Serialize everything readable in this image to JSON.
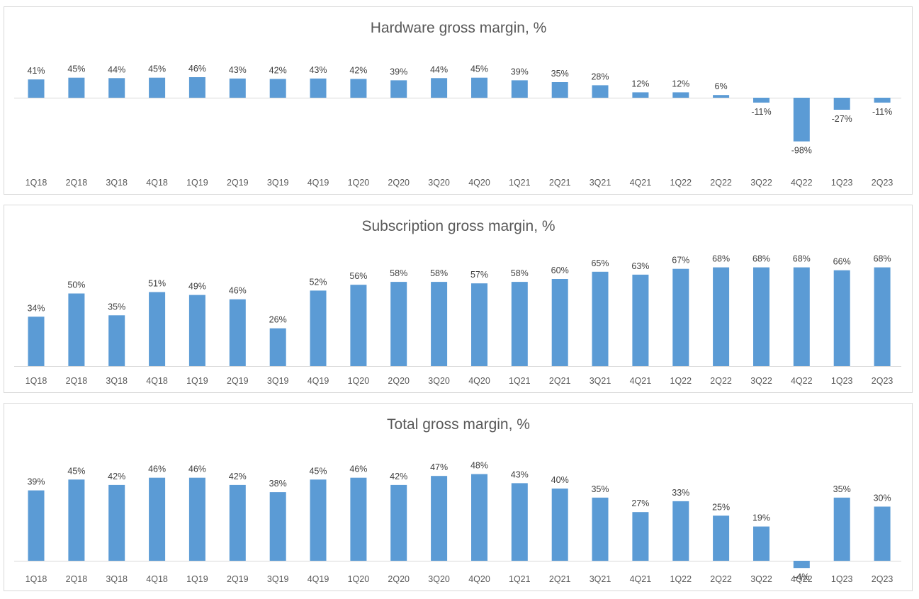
{
  "colors": {
    "bar": "#5b9bd5",
    "axis": "#d9d9d9",
    "title": "#595959",
    "label": "#404040"
  },
  "chart_data": [
    {
      "type": "bar",
      "title": "Hardware gross margin, %",
      "categories": [
        "1Q18",
        "2Q18",
        "3Q18",
        "4Q18",
        "1Q19",
        "2Q19",
        "3Q19",
        "4Q19",
        "1Q20",
        "2Q20",
        "3Q20",
        "4Q20",
        "1Q21",
        "2Q21",
        "3Q21",
        "4Q21",
        "1Q22",
        "2Q22",
        "3Q22",
        "4Q22",
        "1Q23",
        "2Q23"
      ],
      "values": [
        41,
        45,
        44,
        45,
        46,
        43,
        42,
        43,
        42,
        39,
        44,
        45,
        39,
        35,
        28,
        12,
        12,
        6,
        -11,
        -98,
        -27,
        -11
      ],
      "value_labels": [
        "41%",
        "45%",
        "44%",
        "45%",
        "46%",
        "43%",
        "42%",
        "43%",
        "42%",
        "39%",
        "44%",
        "45%",
        "39%",
        "35%",
        "28%",
        "12%",
        "12%",
        "6%",
        "-11%",
        "-98%",
        "-27%",
        "-11%"
      ],
      "ylim": [
        -100,
        100
      ],
      "grid": false,
      "xlabel": "",
      "ylabel": ""
    },
    {
      "type": "bar",
      "title": "Subscription gross margin, %",
      "categories": [
        "1Q18",
        "2Q18",
        "3Q18",
        "4Q18",
        "1Q19",
        "2Q19",
        "3Q19",
        "4Q19",
        "1Q20",
        "2Q20",
        "3Q20",
        "4Q20",
        "1Q21",
        "2Q21",
        "3Q21",
        "4Q21",
        "1Q22",
        "2Q22",
        "3Q22",
        "4Q22",
        "1Q23",
        "2Q23"
      ],
      "values": [
        34,
        50,
        35,
        51,
        49,
        46,
        26,
        52,
        56,
        58,
        58,
        57,
        58,
        60,
        65,
        63,
        67,
        68,
        68,
        68,
        66,
        68
      ],
      "value_labels": [
        "34%",
        "50%",
        "35%",
        "51%",
        "49%",
        "46%",
        "26%",
        "52%",
        "56%",
        "58%",
        "58%",
        "57%",
        "58%",
        "60%",
        "65%",
        "63%",
        "67%",
        "68%",
        "68%",
        "68%",
        "66%",
        "68%"
      ],
      "ylim": [
        0,
        80
      ],
      "grid": false,
      "xlabel": "",
      "ylabel": ""
    },
    {
      "type": "bar",
      "title": "Total gross margin, %",
      "categories": [
        "1Q18",
        "2Q18",
        "3Q18",
        "4Q18",
        "1Q19",
        "2Q19",
        "3Q19",
        "4Q19",
        "1Q20",
        "2Q20",
        "3Q20",
        "4Q20",
        "1Q21",
        "2Q21",
        "3Q21",
        "4Q21",
        "1Q22",
        "2Q22",
        "3Q22",
        "4Q22",
        "1Q23",
        "2Q23"
      ],
      "values": [
        39,
        45,
        42,
        46,
        46,
        42,
        38,
        45,
        46,
        42,
        47,
        48,
        43,
        40,
        35,
        27,
        33,
        25,
        19,
        -4,
        35,
        30
      ],
      "value_labels": [
        "39%",
        "45%",
        "42%",
        "46%",
        "46%",
        "42%",
        "38%",
        "45%",
        "46%",
        "42%",
        "47%",
        "48%",
        "43%",
        "40%",
        "35%",
        "27%",
        "33%",
        "25%",
        "19%",
        "-4%",
        "35%",
        "30%"
      ],
      "ylim": [
        -5,
        60
      ],
      "grid": false,
      "xlabel": "",
      "ylabel": ""
    }
  ]
}
